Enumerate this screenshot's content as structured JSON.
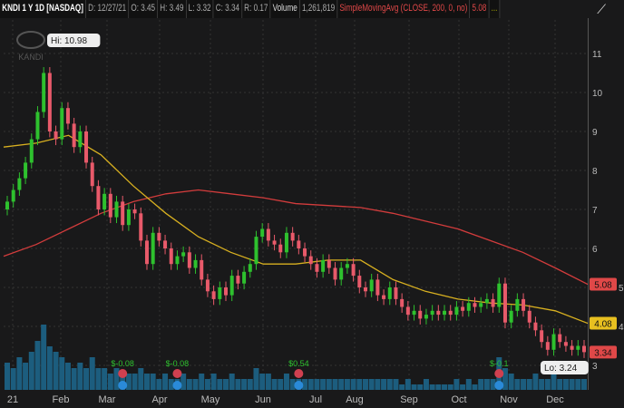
{
  "header": {
    "symbol": "KNDI 1 Y 1D [NASDAQ]",
    "date": "D: 12/27/21",
    "open": "O: 3.45",
    "high": "H: 3.49",
    "low": "L: 3.32",
    "close": "C: 3.34",
    "range": "R: 0.17",
    "volume_label": "Volume",
    "volume": "1,261,819",
    "study": "SimpleMovingAvg (CLOSE, 200, 0, no)",
    "study_value": "5.08",
    "more": "..."
  },
  "logo_text": "KANDI",
  "chart_data": {
    "type": "candlestick",
    "x_ticks": [
      "21",
      "Feb",
      "Mar",
      "Apr",
      "May",
      "Jun",
      "Jul",
      "Aug",
      "Sep",
      "Oct",
      "Nov",
      "Dec"
    ],
    "y_ticks": [
      3,
      4,
      5,
      6,
      7,
      8,
      9,
      10,
      11
    ],
    "ylim": [
      2.6,
      11.4
    ],
    "closes": [
      7.2,
      7.5,
      7.8,
      8.2,
      8.8,
      9.5,
      10.5,
      9.0,
      8.8,
      9.6,
      9.2,
      8.6,
      9.0,
      8.2,
      7.6,
      7.0,
      7.4,
      6.8,
      7.2,
      6.6,
      7.0,
      6.9,
      6.2,
      5.6,
      6.4,
      6.2,
      6.0,
      5.6,
      5.8,
      5.9,
      5.5,
      5.7,
      5.2,
      4.9,
      4.7,
      5.0,
      4.8,
      5.3,
      5.1,
      5.4,
      5.6,
      6.3,
      6.5,
      6.2,
      6.1,
      5.9,
      6.4,
      6.2,
      6.0,
      5.8,
      5.6,
      5.4,
      5.7,
      5.5,
      5.2,
      5.5,
      5.6,
      5.3,
      5.0,
      4.9,
      5.2,
      4.8,
      4.7,
      5.0,
      4.7,
      4.5,
      4.3,
      4.4,
      4.2,
      4.3,
      4.4,
      4.3,
      4.4,
      4.3,
      4.5,
      4.4,
      4.6,
      4.5,
      4.6,
      4.7,
      4.5,
      5.1,
      4.1,
      4.4,
      4.7,
      4.4,
      4.1,
      3.9,
      3.6,
      3.4,
      3.8,
      3.6,
      3.5,
      3.4,
      3.5,
      3.34
    ],
    "volumes": [
      5,
      4,
      6,
      5,
      7,
      9,
      12,
      8,
      7,
      6,
      5,
      4,
      5,
      4,
      6,
      4,
      4,
      3,
      4,
      3,
      3,
      3,
      4,
      3,
      3,
      2,
      3,
      2,
      2,
      3,
      2,
      2,
      3,
      2,
      3,
      2,
      2,
      3,
      2,
      2,
      2,
      4,
      3,
      3,
      2,
      2,
      3,
      2,
      2,
      2,
      2,
      2,
      2,
      2,
      2,
      2,
      2,
      2,
      2,
      2,
      2,
      2,
      2,
      2,
      2,
      1,
      2,
      1,
      1,
      2,
      1,
      1,
      1,
      1,
      2,
      1,
      2,
      1,
      2,
      2,
      2,
      6,
      4,
      3,
      2,
      2,
      2,
      3,
      2,
      2,
      3,
      2,
      2,
      2,
      2,
      2
    ],
    "sma200": [
      5.8,
      6.1,
      6.5,
      6.9,
      7.2,
      7.4,
      7.5,
      7.4,
      7.3,
      7.15,
      7.1,
      7.05,
      6.9,
      6.7,
      6.5,
      6.2,
      5.9,
      5.5,
      5.08
    ],
    "sma50": [
      8.6,
      8.7,
      8.9,
      8.4,
      7.6,
      6.9,
      6.3,
      5.9,
      5.6,
      5.6,
      5.7,
      5.7,
      5.2,
      4.9,
      4.7,
      4.6,
      4.55,
      4.4,
      4.08
    ],
    "hi_label": "Hi: 10.98",
    "lo_label": "Lo: 3.24",
    "last_labels": [
      {
        "text": "5.08",
        "color": "#e04848",
        "value": 5.08
      },
      {
        "text": "4.08",
        "color": "#e8c020",
        "value": 4.08
      },
      {
        "text": "3.34",
        "color": "#e04848",
        "value": 3.34
      }
    ],
    "events": [
      {
        "text": "$-0.08",
        "x_index": 19
      },
      {
        "text": "$-0.08",
        "x_index": 28
      },
      {
        "text": "$0.54",
        "x_index": 48
      },
      {
        "text": "$-0.1",
        "x_index": 81
      }
    ],
    "colors": {
      "up": "#2ec12e",
      "down": "#e85a6a",
      "sma200": "#d23c3c",
      "sma50": "#d8b020",
      "volume": "#1c5d7e"
    }
  }
}
